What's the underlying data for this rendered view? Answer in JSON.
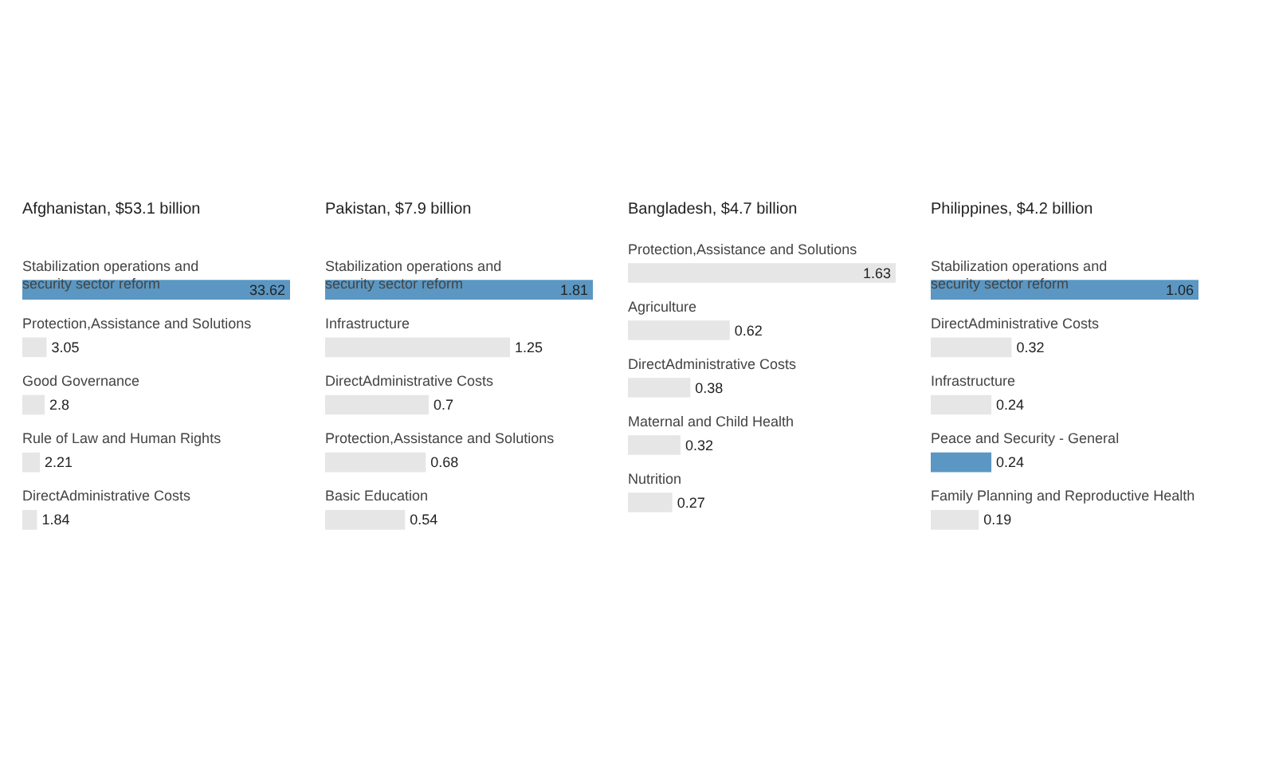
{
  "chart_data": [
    {
      "type": "bar",
      "orientation": "horizontal",
      "title": "Afghanistan, $53.1 billion",
      "categories": [
        "Stabilization operations and security sector reform",
        "Protection,Assistance and Solutions",
        "Good Governance",
        "Rule of Law and Human Rights",
        "DirectAdministrative Costs"
      ],
      "values": [
        33.62,
        3.05,
        2.8,
        2.21,
        1.84
      ],
      "colors": [
        "#5b97c2",
        "#e6e6e6",
        "#e6e6e6",
        "#e6e6e6",
        "#e6e6e6"
      ],
      "data_labels": true
    },
    {
      "type": "bar",
      "orientation": "horizontal",
      "title": "Pakistan, $7.9 billion",
      "categories": [
        "Stabilization operations and security sector reform",
        "Infrastructure",
        "DirectAdministrative Costs",
        "Protection,Assistance and Solutions",
        "Basic Education"
      ],
      "values": [
        1.81,
        1.25,
        0.7,
        0.68,
        0.54
      ],
      "colors": [
        "#5b97c2",
        "#e6e6e6",
        "#e6e6e6",
        "#e6e6e6",
        "#e6e6e6"
      ],
      "data_labels": true
    },
    {
      "type": "bar",
      "orientation": "horizontal",
      "title": "Bangladesh, $4.7 billion",
      "categories": [
        "Protection,Assistance and Solutions",
        "Agriculture",
        "DirectAdministrative Costs",
        "Maternal and Child Health",
        "Nutrition"
      ],
      "values": [
        1.63,
        0.62,
        0.38,
        0.32,
        0.27
      ],
      "colors": [
        "#e6e6e6",
        "#e6e6e6",
        "#e6e6e6",
        "#e6e6e6",
        "#e6e6e6"
      ],
      "data_labels": true
    },
    {
      "type": "bar",
      "orientation": "horizontal",
      "title": "Philippines, $4.2 billion",
      "categories": [
        "Stabilization operations and security sector reform",
        "DirectAdministrative Costs",
        "Infrastructure",
        "Peace and Security - General",
        "Family Planning and Reproductive Health"
      ],
      "values": [
        1.06,
        0.32,
        0.24,
        0.24,
        0.19
      ],
      "colors": [
        "#5b97c2",
        "#e6e6e6",
        "#e6e6e6",
        "#5b97c2",
        "#e6e6e6"
      ],
      "data_labels": true
    }
  ]
}
